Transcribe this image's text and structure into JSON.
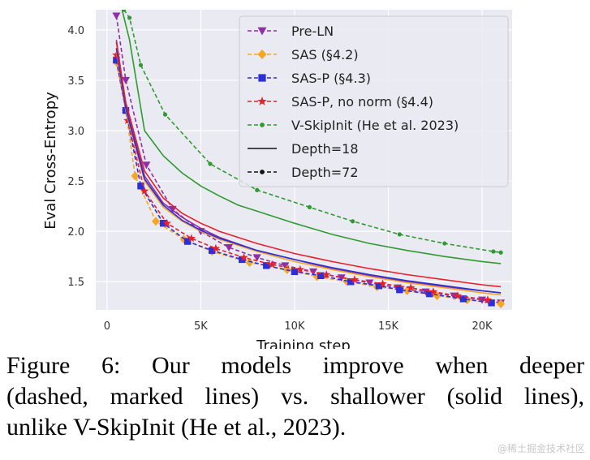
{
  "chart_data": {
    "type": "line",
    "xlabel": "Training step",
    "ylabel": "Eval Cross-Entropy",
    "xlim": [
      -600,
      21600
    ],
    "ylim": [
      1.22,
      4.2
    ],
    "grid": true,
    "legend_position": "top-right",
    "x_ticks": [
      0,
      5000,
      10000,
      15000,
      20000
    ],
    "x_tick_labels": [
      "0",
      "5K",
      "10K",
      "15K",
      "20K"
    ],
    "y_ticks": [
      1.5,
      2.0,
      2.5,
      3.0,
      3.5,
      4.0
    ],
    "y_tick_labels": [
      "1.5",
      "2.0",
      "2.5",
      "3.0",
      "3.5",
      "4.0"
    ],
    "legend": [
      {
        "label": "Pre-LN",
        "style": "dashed",
        "marker": "triangle-down",
        "color": "#8e2ea8"
      },
      {
        "label": "SAS (§4.2)",
        "style": "dashed",
        "marker": "diamond",
        "color": "#f5a623"
      },
      {
        "label": "SAS-P (§4.3)",
        "style": "dashed",
        "marker": "square",
        "color": "#2b2fd8"
      },
      {
        "label": "SAS-P, no norm (§4.4)",
        "style": "dashed",
        "marker": "star",
        "color": "#e8202a"
      },
      {
        "label": "V-SkipInit (He et al. 2023)",
        "style": "dashed",
        "marker": "dot",
        "color": "#2f9a2f"
      },
      {
        "label": "Depth=18",
        "style": "solid",
        "marker": "none",
        "color": "#111111"
      },
      {
        "label": "Depth=72",
        "style": "dashed",
        "marker": "dot",
        "color": "#111111"
      }
    ],
    "series": [
      {
        "name": "Pre-LN",
        "depth": 72,
        "color": "#8e2ea8",
        "marker": "triangle-down",
        "x": [
          500,
          1000,
          2100,
          3500,
          5000,
          6500,
          8000,
          9500,
          11000,
          12500,
          14000,
          15500,
          17000,
          18500,
          20000,
          21000
        ],
        "y": [
          4.14,
          3.5,
          2.66,
          2.22,
          2.0,
          1.84,
          1.74,
          1.66,
          1.6,
          1.54,
          1.49,
          1.44,
          1.4,
          1.36,
          1.32,
          1.29
        ]
      },
      {
        "name": "SAS (§4.2)",
        "depth": 72,
        "color": "#f5a623",
        "marker": "diamond",
        "x": [
          500,
          1000,
          1500,
          2600,
          4100,
          5600,
          7600,
          9600,
          11200,
          12800,
          14400,
          16000,
          17600,
          19200,
          21000
        ],
        "y": [
          3.68,
          3.2,
          2.55,
          2.1,
          1.92,
          1.8,
          1.69,
          1.62,
          1.55,
          1.5,
          1.45,
          1.41,
          1.36,
          1.32,
          1.28
        ]
      },
      {
        "name": "SAS-P (§4.3)",
        "depth": 72,
        "color": "#2b2fd8",
        "marker": "square",
        "x": [
          500,
          1000,
          1800,
          3000,
          4300,
          5600,
          7200,
          8500,
          10000,
          11400,
          13000,
          14500,
          15600,
          17200,
          19000,
          20500
        ],
        "y": [
          3.7,
          3.2,
          2.45,
          2.08,
          1.9,
          1.81,
          1.72,
          1.66,
          1.6,
          1.56,
          1.5,
          1.46,
          1.42,
          1.38,
          1.33,
          1.29
        ]
      },
      {
        "name": "SAS-P, no norm (§4.4)",
        "depth": 72,
        "color": "#e8202a",
        "marker": "star",
        "x": [
          500,
          1100,
          2000,
          3200,
          4500,
          5800,
          7300,
          8800,
          10300,
          11700,
          13200,
          14700,
          16200,
          17400,
          18700,
          20300
        ],
        "y": [
          3.75,
          3.1,
          2.4,
          2.08,
          1.93,
          1.83,
          1.74,
          1.67,
          1.62,
          1.57,
          1.52,
          1.48,
          1.44,
          1.4,
          1.36,
          1.32
        ]
      },
      {
        "name": "Pre-LN",
        "depth": 18,
        "color": "#8e2ea8",
        "marker": "none",
        "x": [
          500,
          1000,
          2000,
          3000,
          4000,
          5000,
          6000,
          8000,
          10000,
          12000,
          14000,
          16000,
          18000,
          20000,
          21000
        ],
        "y": [
          3.9,
          3.25,
          2.55,
          2.28,
          2.14,
          2.03,
          1.94,
          1.81,
          1.72,
          1.63,
          1.56,
          1.5,
          1.45,
          1.41,
          1.39
        ]
      },
      {
        "name": "SAS (§4.2)",
        "depth": 18,
        "color": "#f5a623",
        "marker": "none",
        "x": [
          500,
          1000,
          2000,
          3000,
          4000,
          5000,
          6000,
          8000,
          10000,
          12000,
          14000,
          16000,
          18000,
          20000,
          21000
        ],
        "y": [
          3.8,
          3.2,
          2.5,
          2.24,
          2.1,
          2.0,
          1.92,
          1.8,
          1.7,
          1.62,
          1.55,
          1.49,
          1.44,
          1.39,
          1.37
        ]
      },
      {
        "name": "SAS-P (§4.3)",
        "depth": 18,
        "color": "#2b2fd8",
        "marker": "none",
        "x": [
          500,
          1000,
          2000,
          3000,
          4000,
          5000,
          6000,
          8000,
          10000,
          12000,
          14000,
          16000,
          18000,
          20000,
          21000
        ],
        "y": [
          3.82,
          3.22,
          2.52,
          2.26,
          2.11,
          2.01,
          1.93,
          1.81,
          1.72,
          1.64,
          1.57,
          1.51,
          1.46,
          1.41,
          1.39
        ]
      },
      {
        "name": "SAS-P, no norm (§4.4)",
        "depth": 18,
        "color": "#e8202a",
        "marker": "none",
        "x": [
          500,
          1000,
          2000,
          3000,
          4000,
          5000,
          6000,
          8000,
          10000,
          12000,
          14000,
          16000,
          18000,
          20000,
          21000
        ],
        "y": [
          3.88,
          3.28,
          2.6,
          2.33,
          2.18,
          2.08,
          2.0,
          1.88,
          1.78,
          1.7,
          1.63,
          1.57,
          1.52,
          1.47,
          1.45
        ]
      },
      {
        "name": "V-SkipInit (He et al. 2023)",
        "depth": 18,
        "color": "#2f9a2f",
        "marker": "none",
        "x": [
          800,
          1200,
          2000,
          3000,
          4000,
          5000,
          6000,
          7000,
          8000,
          10000,
          12000,
          14000,
          16000,
          18000,
          20000,
          21000
        ],
        "y": [
          4.2,
          3.9,
          3.0,
          2.75,
          2.58,
          2.45,
          2.35,
          2.26,
          2.2,
          2.08,
          1.97,
          1.88,
          1.81,
          1.75,
          1.7,
          1.68
        ]
      },
      {
        "name": "V-SkipInit (He et al. 2023)",
        "depth": 72,
        "color": "#2f9a2f",
        "marker": "dot",
        "x": [
          900,
          1200,
          1800,
          3100,
          5500,
          8000,
          10800,
          13100,
          15600,
          18000,
          20600,
          21000
        ],
        "y": [
          4.2,
          4.12,
          3.65,
          3.16,
          2.67,
          2.41,
          2.24,
          2.1,
          1.97,
          1.88,
          1.8,
          1.79
        ]
      }
    ]
  },
  "caption": {
    "line1": "Figure 6:  Our models improve when deeper",
    "line2": "(dashed, marked lines) vs. shallower (solid lines),",
    "line3": "unlike V-SkipInit (He et al., 2023)."
  },
  "watermark": "@稀土掘金技术社区"
}
